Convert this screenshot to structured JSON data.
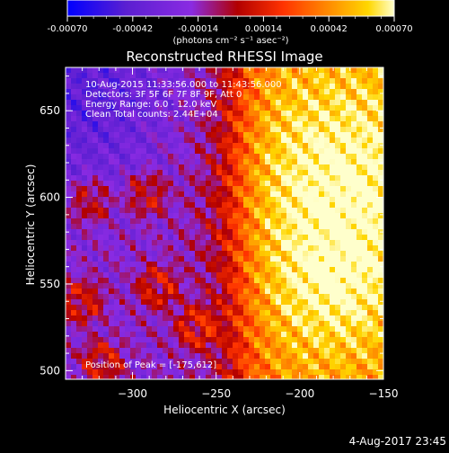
{
  "chart_data": {
    "type": "heatmap",
    "title": "Reconstructed RHESSI Image",
    "xlabel": "Heliocentric X (arcsec)",
    "ylabel": "Heliocentric Y (arcsec)",
    "xlim": [
      -340,
      -150
    ],
    "ylim": [
      495,
      675
    ],
    "xticks": [
      -300,
      -250,
      -200,
      -150
    ],
    "yticks": [
      500,
      550,
      600,
      650
    ],
    "colorbar": {
      "range": [
        -0.0007,
        0.0007
      ],
      "ticks": [
        "-0.00070",
        "-0.00042",
        "-0.00014",
        "0.00014",
        "0.00042",
        "0.00070"
      ],
      "label": "(photons cm⁻² s⁻¹ asec⁻²)",
      "palette": [
        "#0000ff",
        "#8a2be2",
        "#b20000",
        "#ff3300",
        "#ff8c00",
        "#ffd700",
        "#ffffcc"
      ]
    },
    "annotations": {
      "line1": "10-Aug-2015 11:33:56.000 to 11:43:56.000",
      "line2": "Detectors: 3F 5F 6F 7F 8F 9F, Att 0",
      "line3": "Energy Range: 6.0 - 12.0 keV",
      "line4": "Clean     Total counts: 2.44E+04",
      "peak": "Position of Peak = [-175,612]"
    },
    "peak_position": [
      -175,
      612
    ]
  },
  "footer": {
    "timestamp": "4-Aug-2017 23:45"
  }
}
